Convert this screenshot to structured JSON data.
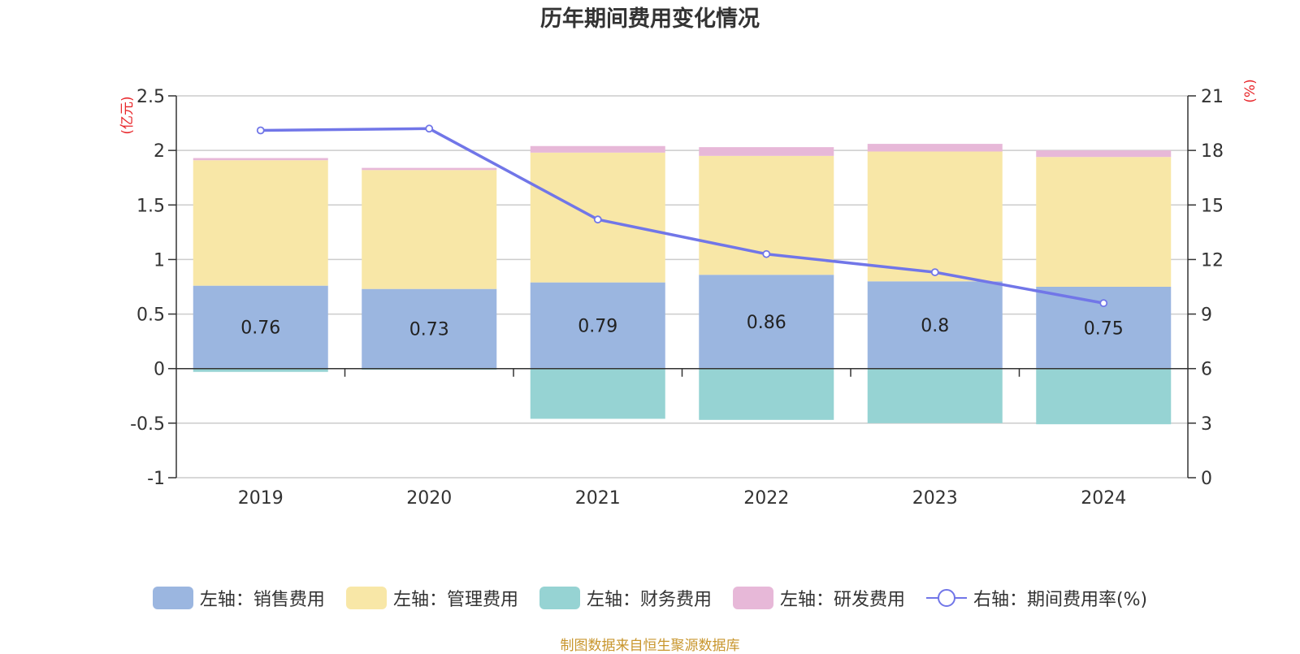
{
  "chart_data": {
    "type": "bar",
    "title": "历年期间费用变化情况",
    "left_axis_unit": "(亿元)",
    "right_axis_unit": "(%)",
    "categories": [
      "2019",
      "2020",
      "2021",
      "2022",
      "2023",
      "2024"
    ],
    "ylim_left": [
      -1,
      2.5
    ],
    "yticks_left": [
      "2.5",
      "2",
      "1.5",
      "1",
      "0.5",
      "0",
      "-0.5",
      "-1"
    ],
    "ylim_right": [
      0,
      21
    ],
    "yticks_right": [
      "21",
      "18",
      "15",
      "12",
      "9",
      "6",
      "3",
      "0"
    ],
    "grid": true,
    "legend_position": "bottom",
    "series": [
      {
        "name": "左轴：销售费用",
        "type": "bar",
        "axis": "left",
        "color": "#9bb6e0",
        "values": [
          0.76,
          0.73,
          0.79,
          0.86,
          0.8,
          0.75
        ],
        "labels": [
          "0.76",
          "0.73",
          "0.79",
          "0.86",
          "0.8",
          "0.75"
        ]
      },
      {
        "name": "左轴：管理费用",
        "type": "bar",
        "axis": "left",
        "color": "#f8e7a7",
        "values": [
          1.15,
          1.09,
          1.19,
          1.09,
          1.19,
          1.19
        ]
      },
      {
        "name": "左轴：财务费用",
        "type": "bar",
        "axis": "left",
        "color": "#96d3d3",
        "values": [
          -0.03,
          -0.01,
          -0.46,
          -0.47,
          -0.5,
          -0.51
        ]
      },
      {
        "name": "左轴：研发费用",
        "type": "bar",
        "axis": "left",
        "color": "#e7b8d8",
        "values": [
          0.02,
          0.02,
          0.06,
          0.08,
          0.07,
          0.06
        ]
      },
      {
        "name": "右轴：期间费用率(%)",
        "type": "line",
        "axis": "right",
        "color": "#7176e8",
        "values": [
          19.1,
          19.2,
          14.2,
          12.3,
          11.3,
          9.6
        ]
      }
    ]
  },
  "footer": "制图数据来自恒生聚源数据库"
}
